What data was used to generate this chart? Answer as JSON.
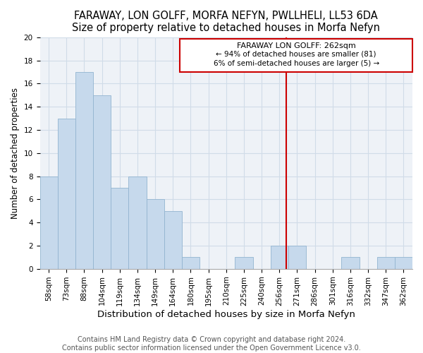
{
  "title": "FARAWAY, LON GOLFF, MORFA NEFYN, PWLLHELI, LL53 6DA",
  "subtitle": "Size of property relative to detached houses in Morfa Nefyn",
  "xlabel": "Distribution of detached houses by size in Morfa Nefyn",
  "ylabel": "Number of detached properties",
  "bin_labels": [
    "58sqm",
    "73sqm",
    "88sqm",
    "104sqm",
    "119sqm",
    "134sqm",
    "149sqm",
    "164sqm",
    "180sqm",
    "195sqm",
    "210sqm",
    "225sqm",
    "240sqm",
    "256sqm",
    "271sqm",
    "286sqm",
    "301sqm",
    "316sqm",
    "332sqm",
    "347sqm",
    "362sqm"
  ],
  "bar_heights": [
    8,
    13,
    17,
    15,
    7,
    8,
    6,
    5,
    1,
    0,
    0,
    1,
    0,
    2,
    2,
    0,
    0,
    1,
    0,
    1,
    1
  ],
  "bar_color": "#c6d9ec",
  "bar_edge_color": "#92b4d0",
  "vline_color": "#cc0000",
  "ylim": [
    0,
    20
  ],
  "yticks": [
    0,
    2,
    4,
    6,
    8,
    10,
    12,
    14,
    16,
    18,
    20
  ],
  "annotation_title": "FARAWAY LON GOLFF: 262sqm",
  "annotation_line1": "← 94% of detached houses are smaller (81)",
  "annotation_line2": "6% of semi-detached houses are larger (5) →",
  "footer_line1": "Contains HM Land Registry data © Crown copyright and database right 2024.",
  "footer_line2": "Contains public sector information licensed under the Open Government Licence v3.0.",
  "title_fontsize": 10.5,
  "subtitle_fontsize": 9.5,
  "xlabel_fontsize": 9.5,
  "ylabel_fontsize": 8.5,
  "tick_fontsize": 7.5,
  "footer_fontsize": 7,
  "annot_fontsize_title": 8,
  "annot_fontsize_body": 7.5
}
